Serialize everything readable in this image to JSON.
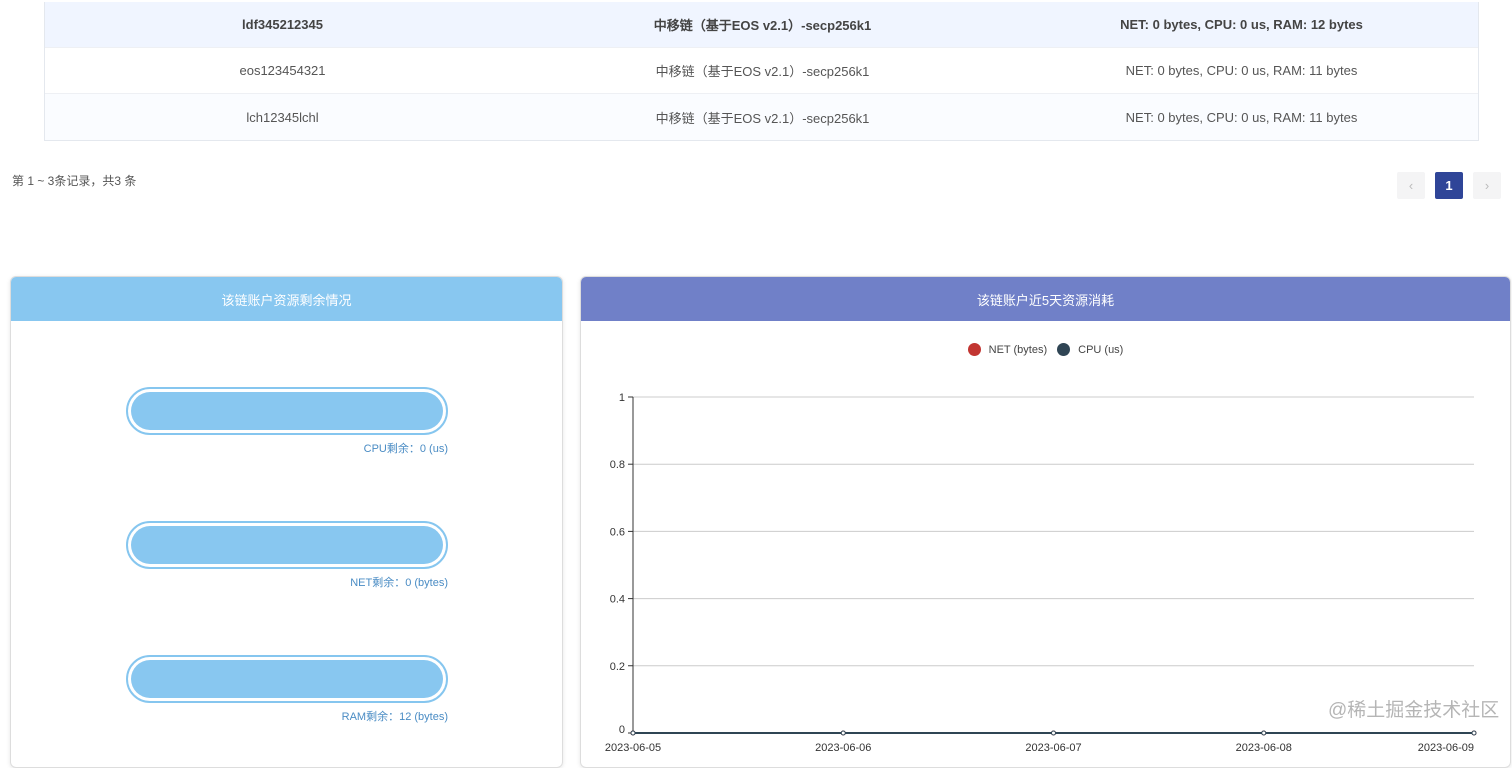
{
  "table": {
    "rows": [
      {
        "account": "ldf345212345",
        "chain": "中移链（基于EOS v2.1）-secp256k1",
        "resources": "NET: 0 bytes, CPU: 0 us, RAM: 12 bytes",
        "selected": true
      },
      {
        "account": "eos123454321",
        "chain": "中移链（基于EOS v2.1）-secp256k1",
        "resources": "NET: 0 bytes, CPU: 0 us, RAM: 11 bytes"
      },
      {
        "account": "lch12345lchl",
        "chain": "中移链（基于EOS v2.1）-secp256k1",
        "resources": "NET: 0 bytes, CPU: 0 us, RAM: 11 bytes"
      }
    ]
  },
  "pagination": {
    "info": "第 1 ~ 3条记录，共3 条",
    "prev": "‹",
    "current": "1",
    "next": "›"
  },
  "left_panel": {
    "title": "该链账户资源剩余情况",
    "header_color": "#88c7f0",
    "bars": [
      {
        "label": "CPU剩余：0 (us)"
      },
      {
        "label": "NET剩余：0 (bytes)"
      },
      {
        "label": "RAM剩余：12 (bytes)"
      }
    ]
  },
  "right_panel": {
    "title": "该链账户近5天资源消耗",
    "header_color": "#7080c8"
  },
  "chart_data": {
    "type": "line",
    "categories": [
      "2023-06-05",
      "2023-06-06",
      "2023-06-07",
      "2023-06-08",
      "2023-06-09"
    ],
    "series": [
      {
        "name": "NET (bytes)",
        "color": "#c23531",
        "values": [
          0,
          0,
          0,
          0,
          0
        ]
      },
      {
        "name": "CPU (us)",
        "color": "#2f4554",
        "values": [
          0,
          0,
          0,
          0,
          0
        ]
      }
    ],
    "ylim": [
      0,
      1
    ],
    "yticks": [
      "0",
      "0.2",
      "0.4",
      "0.6",
      "0.8",
      "1"
    ],
    "grid": true,
    "legend": "top"
  },
  "watermark": "@稀土掘金技术社区"
}
